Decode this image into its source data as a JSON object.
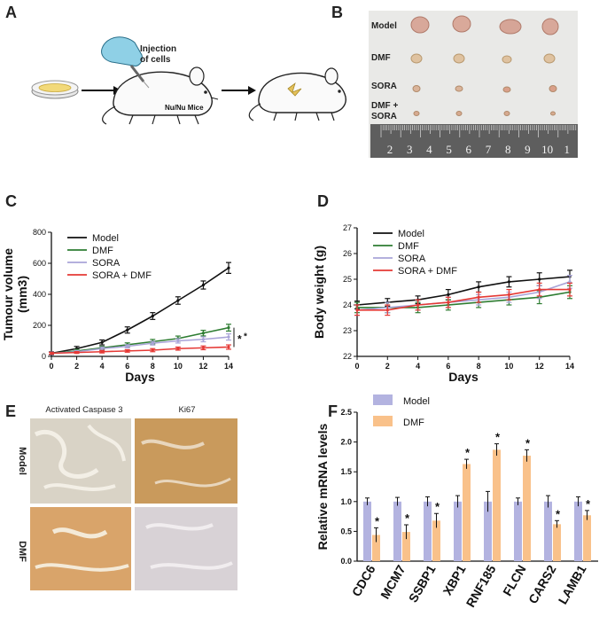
{
  "panels": {
    "A": {
      "label": "A",
      "injection_text": [
        "Injection",
        "of cells"
      ],
      "mice_text": "Nu/Nu Mice"
    },
    "B": {
      "label": "B",
      "groups": [
        "Model",
        "DMF",
        "SORA",
        "DMF +",
        "SORA"
      ],
      "ruler_numbers": [
        "2",
        "3",
        "4",
        "5",
        "6",
        "7",
        "8",
        "9",
        "10",
        "1"
      ]
    },
    "E": {
      "label": "E",
      "col_labels": [
        "Activated Caspase 3",
        "Ki67"
      ],
      "row_labels": [
        "Model",
        "DMF"
      ]
    }
  },
  "chart_data": [
    {
      "panel": "C",
      "type": "line",
      "ylabel": "Tumour volume (mm3)",
      "xlabel": "Days",
      "x": [
        0,
        2,
        4,
        6,
        8,
        10,
        12,
        14
      ],
      "xticks": [
        "0",
        "2",
        "4",
        "6",
        "8",
        "10",
        "12",
        "14"
      ],
      "ylim": [
        0,
        800
      ],
      "yticks": [
        "0",
        "200",
        "400",
        "600",
        "800"
      ],
      "legend_position": "top-left",
      "series": [
        {
          "name": "Model",
          "color": "#111111",
          "values": [
            20,
            50,
            90,
            170,
            260,
            360,
            460,
            570
          ],
          "err": [
            10,
            14,
            16,
            20,
            22,
            24,
            26,
            35
          ]
        },
        {
          "name": "DMF",
          "color": "#2e7d32",
          "values": [
            20,
            35,
            55,
            75,
            95,
            115,
            150,
            185
          ],
          "err": [
            8,
            10,
            10,
            12,
            14,
            16,
            18,
            22
          ]
        },
        {
          "name": "SORA",
          "color": "#a9a4d8",
          "values": [
            20,
            30,
            50,
            65,
            85,
            100,
            110,
            125
          ],
          "err": [
            8,
            8,
            10,
            10,
            12,
            14,
            16,
            20
          ]
        },
        {
          "name": "SORA + DMF",
          "color": "#e53935",
          "values": [
            20,
            25,
            30,
            35,
            40,
            50,
            55,
            60
          ],
          "err": [
            6,
            6,
            8,
            8,
            10,
            10,
            12,
            14
          ]
        }
      ],
      "annotation": [
        "*",
        "*"
      ]
    },
    {
      "panel": "D",
      "type": "line",
      "ylabel": "Body weight (g)",
      "xlabel": "Days",
      "x": [
        0,
        2,
        4,
        6,
        8,
        10,
        12,
        14
      ],
      "xticks": [
        "0",
        "2",
        "4",
        "6",
        "8",
        "10",
        "12",
        "14"
      ],
      "ylim": [
        22,
        27
      ],
      "yticks": [
        "22",
        "23",
        "24",
        "25",
        "26",
        "27"
      ],
      "legend_position": "top-left",
      "series": [
        {
          "name": "Model",
          "color": "#111111",
          "values": [
            24.0,
            24.1,
            24.2,
            24.4,
            24.7,
            24.9,
            25.0,
            25.1
          ],
          "err": [
            0.15,
            0.15,
            0.15,
            0.2,
            0.2,
            0.2,
            0.25,
            0.25
          ]
        },
        {
          "name": "DMF",
          "color": "#2e7d32",
          "values": [
            23.9,
            23.9,
            23.9,
            24.0,
            24.1,
            24.2,
            24.3,
            24.5
          ],
          "err": [
            0.2,
            0.2,
            0.2,
            0.2,
            0.2,
            0.2,
            0.25,
            0.25
          ]
        },
        {
          "name": "SORA",
          "color": "#a9a4d8",
          "values": [
            23.8,
            23.9,
            24.0,
            24.1,
            24.2,
            24.3,
            24.5,
            24.9
          ],
          "err": [
            0.2,
            0.2,
            0.2,
            0.2,
            0.2,
            0.2,
            0.25,
            0.25
          ]
        },
        {
          "name": "SORA + DMF",
          "color": "#e53935",
          "values": [
            23.8,
            23.8,
            24.0,
            24.1,
            24.3,
            24.4,
            24.6,
            24.6
          ],
          "err": [
            0.2,
            0.2,
            0.2,
            0.2,
            0.2,
            0.2,
            0.25,
            0.25
          ]
        }
      ]
    },
    {
      "panel": "F",
      "type": "bar",
      "ylabel": "Relative mRNA levels",
      "categories": [
        "CDC6",
        "MCM7",
        "SSBP1",
        "XBP1",
        "RNF185",
        "FLCN",
        "CARS2",
        "LAMB1"
      ],
      "ylim": [
        0,
        2.5
      ],
      "yticks": [
        "0.0",
        "0.5",
        "1.0",
        "1.5",
        "2.0",
        "2.5"
      ],
      "legend_position": "top-left",
      "series": [
        {
          "name": "Model",
          "color": "#b3b3e0",
          "values": [
            1.0,
            1.0,
            1.0,
            1.0,
            1.0,
            1.0,
            1.0,
            1.0
          ],
          "err": [
            0.06,
            0.07,
            0.08,
            0.1,
            0.17,
            0.06,
            0.1,
            0.08
          ]
        },
        {
          "name": "DMF",
          "color": "#f9c18a",
          "values": [
            0.44,
            0.49,
            0.68,
            1.63,
            1.87,
            1.77,
            0.62,
            0.77
          ],
          "err": [
            0.12,
            0.12,
            0.12,
            0.08,
            0.1,
            0.1,
            0.06,
            0.08
          ]
        }
      ],
      "significance": [
        "*",
        "*",
        "*",
        "*",
        "*",
        "*",
        "*",
        "*"
      ]
    }
  ]
}
